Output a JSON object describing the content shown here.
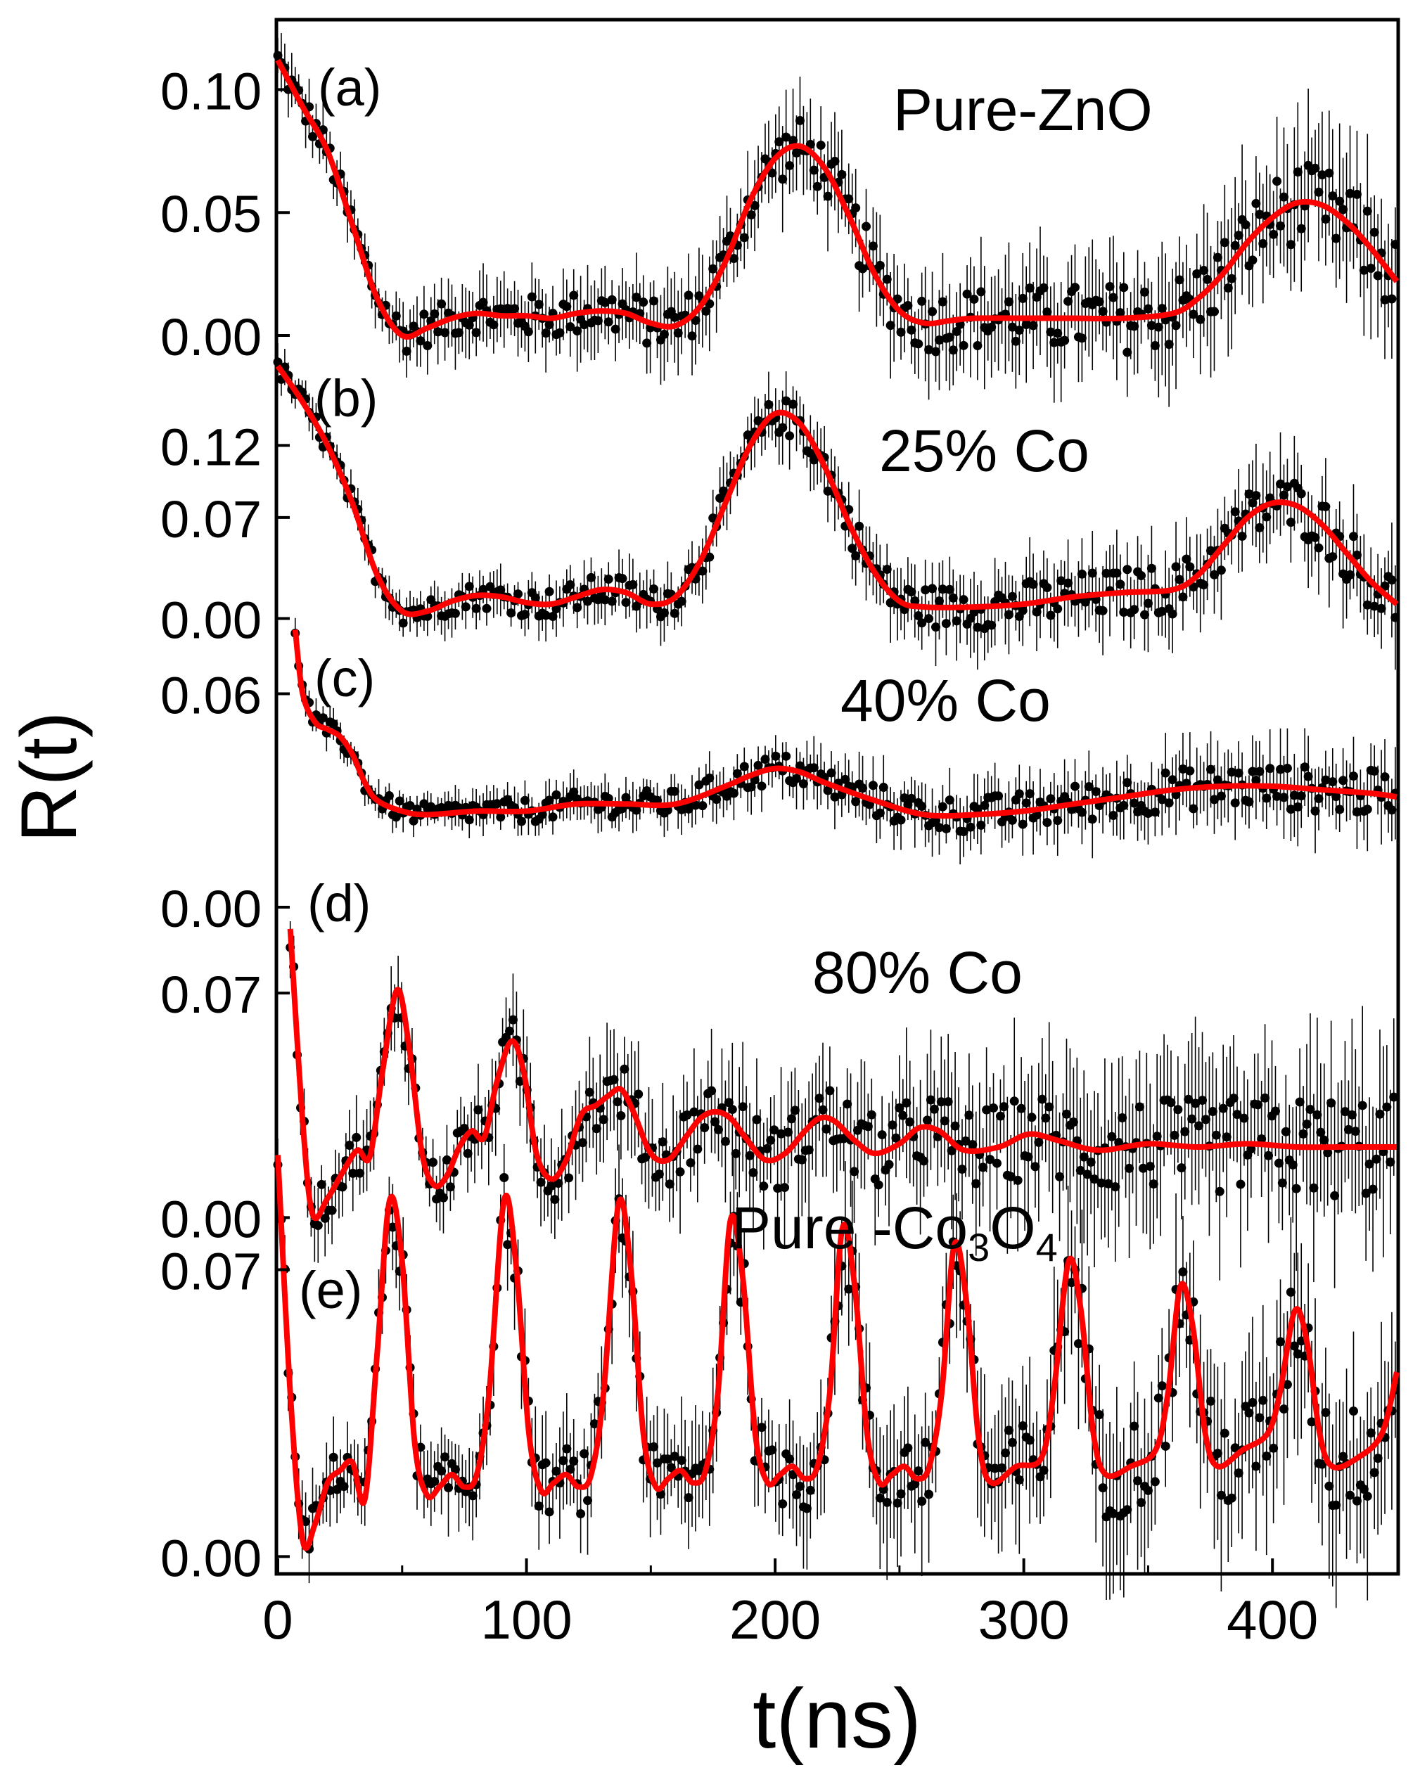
{
  "chart_data": {
    "type": "line",
    "ylabel": "R(t)",
    "xlabel": "t(ns)",
    "xlim": [
      0,
      450
    ],
    "xticks": [
      {
        "value": 0,
        "label": "0"
      },
      {
        "value": 100,
        "label": "100"
      },
      {
        "value": 200,
        "label": "200"
      },
      {
        "value": 300,
        "label": "300"
      },
      {
        "value": 400,
        "label": "400"
      }
    ],
    "colors": {
      "data": "#000000",
      "fit": "#ff0000",
      "axis": "#000000"
    },
    "panels": [
      {
        "tag": "(a)",
        "name": "Pure-ZnO",
        "ylim": [
          -0.008,
          0.125
        ],
        "yticks": [
          {
            "value": 0.1,
            "label": "0.10"
          },
          {
            "value": 0.05,
            "label": "0.05"
          },
          {
            "value": 0.0,
            "label": "0.00"
          }
        ],
        "fit": [
          [
            0,
            0.112
          ],
          [
            10,
            0.093
          ],
          [
            20,
            0.075
          ],
          [
            30,
            0.045
          ],
          [
            40,
            0.015
          ],
          [
            50,
            0.0
          ],
          [
            60,
            0.003
          ],
          [
            70,
            0.007
          ],
          [
            80,
            0.009
          ],
          [
            90,
            0.008
          ],
          [
            100,
            0.008
          ],
          [
            110,
            0.007
          ],
          [
            120,
            0.009
          ],
          [
            130,
            0.01
          ],
          [
            140,
            0.009
          ],
          [
            150,
            0.005
          ],
          [
            160,
            0.004
          ],
          [
            170,
            0.012
          ],
          [
            180,
            0.03
          ],
          [
            190,
            0.055
          ],
          [
            200,
            0.072
          ],
          [
            210,
            0.077
          ],
          [
            220,
            0.068
          ],
          [
            230,
            0.048
          ],
          [
            240,
            0.025
          ],
          [
            250,
            0.01
          ],
          [
            260,
            0.005
          ],
          [
            270,
            0.006
          ],
          [
            280,
            0.007
          ],
          [
            300,
            0.007
          ],
          [
            320,
            0.007
          ],
          [
            340,
            0.007
          ],
          [
            360,
            0.009
          ],
          [
            370,
            0.015
          ],
          [
            380,
            0.025
          ],
          [
            390,
            0.038
          ],
          [
            400,
            0.048
          ],
          [
            410,
            0.054
          ],
          [
            420,
            0.053
          ],
          [
            430,
            0.046
          ],
          [
            440,
            0.035
          ],
          [
            450,
            0.022
          ]
        ],
        "noise": 0.01
      },
      {
        "tag": "(b)",
        "name": "25% Co",
        "ylim": [
          -0.01,
          0.185
        ],
        "yticks": [
          {
            "value": 0.07,
            "label": "0.07"
          },
          {
            "value": 0.12,
            "label": "0.12"
          },
          {
            "value": 0.0,
            "label": "0.00"
          }
        ],
        "fit": [
          [
            0,
            0.175
          ],
          [
            10,
            0.15
          ],
          [
            20,
            0.12
          ],
          [
            30,
            0.08
          ],
          [
            40,
            0.03
          ],
          [
            50,
            0.005
          ],
          [
            60,
            0.005
          ],
          [
            70,
            0.012
          ],
          [
            80,
            0.016
          ],
          [
            90,
            0.015
          ],
          [
            100,
            0.011
          ],
          [
            110,
            0.01
          ],
          [
            120,
            0.015
          ],
          [
            130,
            0.02
          ],
          [
            140,
            0.018
          ],
          [
            150,
            0.01
          ],
          [
            160,
            0.015
          ],
          [
            170,
            0.04
          ],
          [
            180,
            0.08
          ],
          [
            190,
            0.12
          ],
          [
            200,
            0.142
          ],
          [
            210,
            0.135
          ],
          [
            220,
            0.105
          ],
          [
            230,
            0.065
          ],
          [
            240,
            0.032
          ],
          [
            250,
            0.012
          ],
          [
            260,
            0.008
          ],
          [
            280,
            0.008
          ],
          [
            300,
            0.01
          ],
          [
            320,
            0.015
          ],
          [
            340,
            0.018
          ],
          [
            360,
            0.02
          ],
          [
            370,
            0.03
          ],
          [
            380,
            0.05
          ],
          [
            390,
            0.07
          ],
          [
            400,
            0.08
          ],
          [
            410,
            0.078
          ],
          [
            420,
            0.065
          ],
          [
            430,
            0.045
          ],
          [
            440,
            0.025
          ],
          [
            450,
            0.01
          ]
        ],
        "noise": 0.012
      },
      {
        "tag": "(c)",
        "name": "40% Co",
        "ylim": [
          0,
          0.085
        ],
        "yticks": [
          {
            "value": 0.06,
            "label": "0.06"
          },
          {
            "value": 0.0,
            "label": "0.00"
          }
        ],
        "fit": [
          [
            7,
            0.078
          ],
          [
            10,
            0.06
          ],
          [
            15,
            0.052
          ],
          [
            20,
            0.05
          ],
          [
            25,
            0.048
          ],
          [
            30,
            0.043
          ],
          [
            35,
            0.035
          ],
          [
            40,
            0.03
          ],
          [
            50,
            0.027
          ],
          [
            60,
            0.026
          ],
          [
            80,
            0.027
          ],
          [
            100,
            0.027
          ],
          [
            120,
            0.029
          ],
          [
            140,
            0.029
          ],
          [
            160,
            0.029
          ],
          [
            180,
            0.034
          ],
          [
            190,
            0.037
          ],
          [
            200,
            0.039
          ],
          [
            210,
            0.038
          ],
          [
            220,
            0.035
          ],
          [
            240,
            0.03
          ],
          [
            260,
            0.026
          ],
          [
            280,
            0.026
          ],
          [
            300,
            0.027
          ],
          [
            320,
            0.029
          ],
          [
            340,
            0.031
          ],
          [
            360,
            0.033
          ],
          [
            380,
            0.034
          ],
          [
            400,
            0.034
          ],
          [
            420,
            0.033
          ],
          [
            440,
            0.032
          ],
          [
            450,
            0.031
          ]
        ],
        "noise": 0.004
      },
      {
        "tag": "(d)",
        "name": "80% Co",
        "ylim": [
          -0.003,
          0.088
        ],
        "yticks": [
          {
            "value": 0.07,
            "label": "0.07"
          },
          {
            "value": 0.0,
            "label": "0.00"
          }
        ],
        "fit": [
          [
            5,
            0.09
          ],
          [
            10,
            0.03
          ],
          [
            14,
            0.001
          ],
          [
            20,
            0.006
          ],
          [
            26,
            0.014
          ],
          [
            32,
            0.021
          ],
          [
            37,
            0.019
          ],
          [
            42,
            0.045
          ],
          [
            48,
            0.071
          ],
          [
            53,
            0.052
          ],
          [
            58,
            0.02
          ],
          [
            63,
            0.01
          ],
          [
            68,
            0.013
          ],
          [
            73,
            0.022
          ],
          [
            78,
            0.027
          ],
          [
            83,
            0.025
          ],
          [
            88,
            0.042
          ],
          [
            94,
            0.055
          ],
          [
            99,
            0.045
          ],
          [
            104,
            0.02
          ],
          [
            110,
            0.012
          ],
          [
            116,
            0.018
          ],
          [
            122,
            0.032
          ],
          [
            128,
            0.035
          ],
          [
            133,
            0.038
          ],
          [
            138,
            0.04
          ],
          [
            143,
            0.033
          ],
          [
            150,
            0.02
          ],
          [
            157,
            0.018
          ],
          [
            164,
            0.025
          ],
          [
            170,
            0.031
          ],
          [
            176,
            0.033
          ],
          [
            182,
            0.031
          ],
          [
            188,
            0.025
          ],
          [
            196,
            0.018
          ],
          [
            204,
            0.02
          ],
          [
            212,
            0.027
          ],
          [
            218,
            0.031
          ],
          [
            224,
            0.03
          ],
          [
            232,
            0.024
          ],
          [
            240,
            0.02
          ],
          [
            250,
            0.023
          ],
          [
            258,
            0.028
          ],
          [
            266,
            0.027
          ],
          [
            276,
            0.021
          ],
          [
            290,
            0.022
          ],
          [
            302,
            0.026
          ],
          [
            314,
            0.024
          ],
          [
            330,
            0.021
          ],
          [
            350,
            0.023
          ],
          [
            370,
            0.022
          ],
          [
            390,
            0.023
          ],
          [
            410,
            0.022
          ],
          [
            430,
            0.022
          ],
          [
            450,
            0.022
          ]
        ],
        "noise": 0.01
      },
      {
        "tag": "(e)",
        "name": "Pure -Co",
        "name_sub1": "3",
        "name_mid": "O",
        "name_sub2": "4",
        "ylim": [
          -0.008,
          0.113
        ],
        "yticks": [
          {
            "value": 0.07,
            "label": "0.07"
          },
          {
            "value": 0.0,
            "label": "0.00"
          }
        ],
        "fit": [
          [
            0,
            0.098
          ],
          [
            5,
            0.04
          ],
          [
            10,
            0.004
          ],
          [
            15,
            0.008
          ],
          [
            20,
            0.018
          ],
          [
            25,
            0.021
          ],
          [
            30,
            0.023
          ],
          [
            35,
            0.014
          ],
          [
            40,
            0.05
          ],
          [
            45,
            0.087
          ],
          [
            50,
            0.072
          ],
          [
            55,
            0.028
          ],
          [
            60,
            0.015
          ],
          [
            65,
            0.017
          ],
          [
            70,
            0.02
          ],
          [
            75,
            0.017
          ],
          [
            80,
            0.02
          ],
          [
            85,
            0.04
          ],
          [
            91,
            0.087
          ],
          [
            96,
            0.07
          ],
          [
            101,
            0.03
          ],
          [
            106,
            0.016
          ],
          [
            111,
            0.018
          ],
          [
            116,
            0.02
          ],
          [
            121,
            0.017
          ],
          [
            126,
            0.02
          ],
          [
            131,
            0.04
          ],
          [
            137,
            0.086
          ],
          [
            142,
            0.07
          ],
          [
            147,
            0.03
          ],
          [
            152,
            0.017
          ],
          [
            157,
            0.019
          ],
          [
            162,
            0.021
          ],
          [
            167,
            0.018
          ],
          [
            172,
            0.021
          ],
          [
            177,
            0.04
          ],
          [
            182,
            0.082
          ],
          [
            187,
            0.068
          ],
          [
            192,
            0.03
          ],
          [
            197,
            0.018
          ],
          [
            202,
            0.02
          ],
          [
            207,
            0.022
          ],
          [
            212,
            0.019
          ],
          [
            217,
            0.022
          ],
          [
            222,
            0.04
          ],
          [
            227,
            0.08
          ],
          [
            232,
            0.066
          ],
          [
            237,
            0.03
          ],
          [
            242,
            0.018
          ],
          [
            247,
            0.02
          ],
          [
            252,
            0.022
          ],
          [
            257,
            0.019
          ],
          [
            262,
            0.022
          ],
          [
            267,
            0.04
          ],
          [
            272,
            0.076
          ],
          [
            277,
            0.062
          ],
          [
            282,
            0.028
          ],
          [
            287,
            0.018
          ],
          [
            297,
            0.022
          ],
          [
            307,
            0.024
          ],
          [
            312,
            0.04
          ],
          [
            318,
            0.072
          ],
          [
            323,
            0.06
          ],
          [
            328,
            0.03
          ],
          [
            333,
            0.02
          ],
          [
            343,
            0.022
          ],
          [
            353,
            0.026
          ],
          [
            358,
            0.04
          ],
          [
            363,
            0.066
          ],
          [
            368,
            0.056
          ],
          [
            373,
            0.03
          ],
          [
            378,
            0.022
          ],
          [
            388,
            0.026
          ],
          [
            398,
            0.03
          ],
          [
            403,
            0.04
          ],
          [
            409,
            0.06
          ],
          [
            414,
            0.052
          ],
          [
            419,
            0.03
          ],
          [
            424,
            0.022
          ],
          [
            434,
            0.024
          ],
          [
            444,
            0.03
          ],
          [
            450,
            0.045
          ]
        ],
        "noise": 0.008
      }
    ]
  }
}
